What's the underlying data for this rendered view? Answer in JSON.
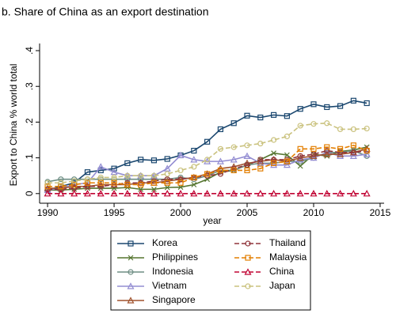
{
  "chart_data": {
    "type": "line",
    "title": "b. Share of China as an export destination",
    "y_label": "Export to China % world total",
    "x_label": "year",
    "x": [
      1990,
      1991,
      1992,
      1993,
      1994,
      1995,
      1996,
      1997,
      1998,
      1999,
      2000,
      2001,
      2002,
      2003,
      2004,
      2005,
      2006,
      2007,
      2008,
      2009,
      2010,
      2011,
      2012,
      2013,
      2014
    ],
    "xlim": [
      1989.4,
      2015.3
    ],
    "xticks": [
      1990,
      1995,
      2000,
      2005,
      2010,
      2015
    ],
    "ylim": [
      -0.027,
      0.42
    ],
    "yticks": [
      0,
      {
        "value": 0.1,
        "label": ".1"
      },
      {
        "value": 0.2,
        "label": ".2"
      },
      {
        "value": 0.3,
        "label": ".3"
      },
      {
        "value": 0.4,
        "label": ".4"
      }
    ],
    "grid": false,
    "series": [
      {
        "name": "Korea",
        "color": "#1a476f",
        "marker": "square",
        "dash": false,
        "values": [
          0.01,
          0.02,
          0.03,
          0.06,
          0.065,
          0.07,
          0.085,
          0.095,
          0.093,
          0.097,
          0.107,
          0.12,
          0.145,
          0.18,
          0.197,
          0.218,
          0.213,
          0.22,
          0.217,
          0.237,
          0.25,
          0.242,
          0.245,
          0.26,
          0.253
        ]
      },
      {
        "name": "Philippines",
        "color": "#55752f",
        "marker": "x",
        "dash": false,
        "values": [
          0.01,
          0.01,
          0.012,
          0.015,
          0.015,
          0.015,
          0.017,
          0.012,
          0.012,
          0.017,
          0.018,
          0.025,
          0.04,
          0.06,
          0.065,
          0.08,
          0.095,
          0.113,
          0.108,
          0.077,
          0.11,
          0.105,
          0.118,
          0.122,
          0.13
        ]
      },
      {
        "name": "Indonesia",
        "color": "#6e8e84",
        "marker": "circle",
        "dash": false,
        "values": [
          0.033,
          0.04,
          0.04,
          0.04,
          0.04,
          0.04,
          0.04,
          0.04,
          0.04,
          0.04,
          0.045,
          0.04,
          0.05,
          0.065,
          0.065,
          0.08,
          0.085,
          0.085,
          0.09,
          0.09,
          0.1,
          0.115,
          0.115,
          0.12,
          0.105
        ]
      },
      {
        "name": "Vietnam",
        "color": "#938dd2",
        "marker": "triangle",
        "dash": false,
        "values": [
          0.01,
          0.015,
          0.025,
          0.03,
          0.075,
          0.06,
          0.05,
          0.05,
          0.05,
          0.07,
          0.107,
          0.095,
          0.09,
          0.09,
          0.095,
          0.105,
          0.085,
          0.08,
          0.08,
          0.095,
          0.1,
          0.115,
          0.105,
          0.105,
          0.11
        ]
      },
      {
        "name": "Singapore",
        "color": "#a0522d",
        "marker": "triangle",
        "dash": false,
        "values": [
          0.015,
          0.015,
          0.02,
          0.02,
          0.025,
          0.025,
          0.025,
          0.03,
          0.03,
          0.035,
          0.04,
          0.045,
          0.055,
          0.07,
          0.075,
          0.085,
          0.09,
          0.095,
          0.09,
          0.1,
          0.105,
          0.11,
          0.11,
          0.115,
          0.125
        ]
      },
      {
        "name": "Thailand",
        "color": "#90353b",
        "marker": "circle",
        "dash": true,
        "values": [
          0.012,
          0.012,
          0.015,
          0.02,
          0.02,
          0.025,
          0.03,
          0.03,
          0.035,
          0.04,
          0.04,
          0.045,
          0.05,
          0.055,
          0.07,
          0.08,
          0.095,
          0.095,
          0.095,
          0.105,
          0.11,
          0.12,
          0.115,
          0.115,
          0.12
        ]
      },
      {
        "name": "Malaysia",
        "color": "#e37e00",
        "marker": "square",
        "dash": true,
        "values": [
          0.02,
          0.02,
          0.025,
          0.03,
          0.03,
          0.03,
          0.025,
          0.025,
          0.03,
          0.03,
          0.03,
          0.045,
          0.055,
          0.065,
          0.065,
          0.065,
          0.07,
          0.085,
          0.09,
          0.125,
          0.125,
          0.13,
          0.125,
          0.135,
          0.12
        ]
      },
      {
        "name": "China",
        "color": "#c10534",
        "marker": "triangle",
        "dash": true,
        "values": [
          0,
          0,
          0,
          0,
          0,
          0,
          0,
          0,
          0,
          0,
          0,
          0,
          0,
          0,
          0,
          0,
          0,
          0,
          0,
          0,
          0,
          0,
          0,
          0,
          0
        ]
      },
      {
        "name": "Japan",
        "color": "#cac27e",
        "marker": "circle",
        "dash": true,
        "values": [
          0.03,
          0.03,
          0.035,
          0.04,
          0.045,
          0.045,
          0.05,
          0.05,
          0.05,
          0.055,
          0.065,
          0.075,
          0.095,
          0.125,
          0.13,
          0.135,
          0.14,
          0.15,
          0.16,
          0.19,
          0.195,
          0.197,
          0.18,
          0.18,
          0.182
        ]
      }
    ]
  }
}
